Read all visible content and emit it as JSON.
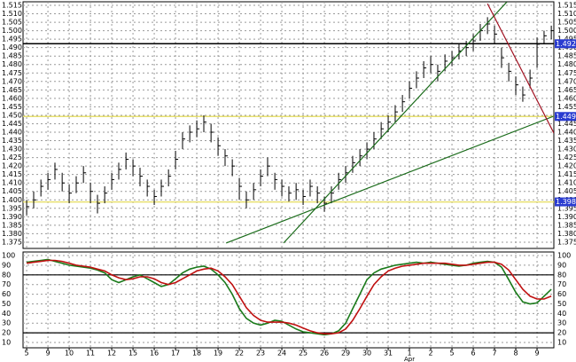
{
  "chart_data": [
    {
      "type": "ohlc",
      "x": [
        0,
        0.33,
        0.67,
        1,
        1.33,
        1.67,
        2,
        2.33,
        2.67,
        3,
        3.33,
        3.67,
        4,
        4.33,
        4.67,
        5,
        5.33,
        5.67,
        6,
        6.33,
        6.67,
        7,
        7.33,
        7.67,
        8,
        8.33,
        8.67,
        9,
        9.33,
        9.67,
        10,
        10.33,
        10.67,
        11,
        11.33,
        11.67,
        12,
        12.33,
        12.67,
        13,
        13.33,
        13.67,
        14,
        14.33,
        14.67,
        15,
        15.33,
        15.67,
        16,
        16.33,
        16.67,
        17,
        17.33,
        17.67,
        18,
        18.33,
        18.67,
        19,
        19.33,
        19.67,
        20,
        20.33,
        20.67,
        21,
        21.33,
        21.67,
        22,
        22.33,
        22.67,
        23,
        23.33,
        23.67,
        24,
        24.33,
        24.67
      ],
      "high": [
        1.4,
        1.405,
        1.412,
        1.416,
        1.422,
        1.416,
        1.409,
        1.414,
        1.42,
        1.41,
        1.403,
        1.408,
        1.416,
        1.422,
        1.428,
        1.424,
        1.419,
        1.412,
        1.406,
        1.412,
        1.418,
        1.429,
        1.44,
        1.444,
        1.447,
        1.45,
        1.445,
        1.437,
        1.43,
        1.424,
        1.413,
        1.405,
        1.41,
        1.418,
        1.425,
        1.416,
        1.412,
        1.408,
        1.41,
        1.406,
        1.412,
        1.408,
        1.402,
        1.408,
        1.416,
        1.42,
        1.426,
        1.43,
        1.434,
        1.44,
        1.446,
        1.45,
        1.456,
        1.462,
        1.47,
        1.476,
        1.482,
        1.485,
        1.48,
        1.486,
        1.488,
        1.492,
        1.494,
        1.498,
        1.504,
        1.508,
        1.503,
        1.49,
        1.481,
        1.473,
        1.467,
        1.477,
        1.496,
        1.5,
        1.503
      ],
      "low": [
        1.391,
        1.395,
        1.402,
        1.406,
        1.412,
        1.405,
        1.398,
        1.404,
        1.41,
        1.398,
        1.392,
        1.398,
        1.406,
        1.412,
        1.418,
        1.414,
        1.408,
        1.402,
        1.397,
        1.402,
        1.408,
        1.418,
        1.43,
        1.434,
        1.437,
        1.44,
        1.434,
        1.426,
        1.42,
        1.414,
        1.4,
        1.395,
        1.4,
        1.408,
        1.414,
        1.406,
        1.402,
        1.399,
        1.4,
        1.397,
        1.402,
        1.398,
        1.393,
        1.398,
        1.406,
        1.41,
        1.416,
        1.42,
        1.424,
        1.43,
        1.436,
        1.44,
        1.446,
        1.452,
        1.46,
        1.466,
        1.472,
        1.475,
        1.47,
        1.476,
        1.479,
        1.483,
        1.485,
        1.488,
        1.494,
        1.498,
        1.492,
        1.478,
        1.47,
        1.462,
        1.458,
        1.466,
        1.478,
        1.492,
        1.495
      ],
      "close": [
        1.396,
        1.4,
        1.408,
        1.412,
        1.418,
        1.41,
        1.404,
        1.41,
        1.416,
        1.405,
        1.398,
        1.404,
        1.412,
        1.418,
        1.424,
        1.42,
        1.414,
        1.408,
        1.402,
        1.408,
        1.414,
        1.424,
        1.436,
        1.44,
        1.442,
        1.446,
        1.44,
        1.432,
        1.426,
        1.42,
        1.408,
        1.4,
        1.406,
        1.414,
        1.42,
        1.412,
        1.408,
        1.404,
        1.406,
        1.402,
        1.408,
        1.404,
        1.398,
        1.404,
        1.412,
        1.416,
        1.422,
        1.426,
        1.43,
        1.436,
        1.442,
        1.446,
        1.452,
        1.458,
        1.466,
        1.472,
        1.478,
        1.48,
        1.476,
        1.482,
        1.484,
        1.488,
        1.49,
        1.494,
        1.5,
        1.504,
        1.498,
        1.484,
        1.476,
        1.468,
        1.462,
        1.472,
        1.492,
        1.497,
        1.5
      ],
      "color": "#000000",
      "xlim": [
        -0.17,
        24.79
      ],
      "ylim": [
        1.3713,
        1.5171
      ],
      "yticks": [
        1.515,
        {
          "value": 1.51,
          "label": "1.510"
        },
        1.505,
        {
          "value": 1.5,
          "label": "1.500"
        },
        1.495,
        {
          "value": 1.49,
          "label": "1.490"
        },
        1.485,
        {
          "value": 1.48,
          "label": "1.480"
        },
        1.475,
        {
          "value": 1.47,
          "label": "1.470"
        },
        1.465,
        {
          "value": 1.46,
          "label": "1.460"
        },
        1.455,
        {
          "value": 1.45,
          "label": "1.450"
        },
        1.445,
        {
          "value": 1.44,
          "label": "1.440"
        },
        1.435,
        {
          "value": 1.43,
          "label": "1.430"
        },
        1.425,
        {
          "value": 1.42,
          "label": "1.420"
        },
        1.415,
        {
          "value": 1.41,
          "label": "1.410"
        },
        1.405,
        {
          "value": 1.4,
          "label": "1.400"
        },
        1.395,
        {
          "value": 1.39,
          "label": "1.390"
        },
        1.385,
        {
          "value": 1.38,
          "label": "1.380"
        },
        1.375
      ],
      "grid": true,
      "hlines": [
        {
          "value": 1.4923,
          "color": "#000000"
        },
        {
          "value": 1.4493,
          "color": "#e8e070"
        },
        {
          "value": 1.3988,
          "color": "#e8e070"
        }
      ],
      "trendlines": [
        {
          "color": "#1a6b1a",
          "x": [
            9.38,
            24.79
          ],
          "y": [
            1.3745,
            1.4495
          ]
        },
        {
          "color": "#1a6b1a",
          "x": [
            12.08,
            22.58
          ],
          "y": [
            1.3745,
            1.517
          ]
        },
        {
          "color": "#a01020",
          "x": [
            21.67,
            24.79
          ],
          "y": [
            1.516,
            1.4395
          ]
        }
      ]
    },
    {
      "type": "line",
      "x": [
        0,
        0.33,
        0.67,
        1,
        1.33,
        1.67,
        2,
        2.33,
        2.67,
        3,
        3.33,
        3.67,
        4,
        4.33,
        4.67,
        5,
        5.33,
        5.67,
        6,
        6.33,
        6.67,
        7,
        7.33,
        7.67,
        8,
        8.33,
        8.67,
        9,
        9.33,
        9.67,
        10,
        10.33,
        10.67,
        11,
        11.33,
        11.67,
        12,
        12.33,
        12.67,
        13,
        13.33,
        13.67,
        14,
        14.33,
        14.67,
        15,
        15.33,
        15.67,
        16,
        16.33,
        16.67,
        17,
        17.33,
        17.67,
        18,
        18.33,
        18.67,
        19,
        19.33,
        19.67,
        20,
        20.33,
        20.67,
        21,
        21.33,
        21.67,
        22,
        22.33,
        22.67,
        23,
        23.33,
        23.67,
        24,
        24.33,
        24.67
      ],
      "series": [
        {
          "color": "#1a7a1a",
          "values": [
            93,
            94,
            95,
            96,
            94,
            92,
            90,
            89,
            88,
            87,
            85,
            82,
            75,
            72,
            75,
            78,
            80,
            76,
            72,
            68,
            70,
            76,
            82,
            86,
            88,
            89,
            86,
            80,
            72,
            60,
            45,
            35,
            30,
            28,
            30,
            33,
            32,
            28,
            24,
            21,
            20,
            19,
            18,
            19,
            22,
            30,
            45,
            60,
            75,
            82,
            86,
            88,
            90,
            91,
            92,
            93,
            92,
            93,
            92,
            91,
            90,
            89,
            90,
            92,
            93,
            94,
            93,
            88,
            75,
            62,
            52,
            50,
            51,
            58,
            65
          ]
        },
        {
          "color": "#c01010",
          "values": [
            92,
            93,
            94,
            95,
            95,
            94,
            92,
            90,
            89,
            88,
            86,
            84,
            80,
            77,
            75,
            76,
            78,
            78,
            76,
            72,
            70,
            72,
            76,
            80,
            84,
            86,
            87,
            84,
            78,
            70,
            58,
            46,
            38,
            33,
            31,
            31,
            31,
            30,
            28,
            25,
            22,
            20,
            19,
            19,
            20,
            24,
            33,
            45,
            58,
            70,
            78,
            84,
            87,
            89,
            90,
            91,
            92,
            92,
            92,
            92,
            91,
            90,
            90,
            91,
            92,
            93,
            93,
            91,
            85,
            75,
            65,
            58,
            55,
            55,
            58
          ]
        }
      ],
      "xlim": [
        -0.17,
        24.79
      ],
      "ylim": [
        4.5,
        103.7
      ],
      "yticks": [
        10,
        20,
        30,
        40,
        50,
        60,
        70,
        80,
        90,
        100
      ],
      "grid": true,
      "hlines": [
        {
          "value": 80,
          "color": "#000000"
        },
        {
          "value": 20,
          "color": "#000000"
        }
      ],
      "xticks": [
        {
          "value": 0,
          "label": "5"
        },
        {
          "value": 1,
          "label": "9"
        },
        {
          "value": 2,
          "label": "10"
        },
        {
          "value": 3,
          "label": "11"
        },
        {
          "value": 4,
          "label": "12"
        },
        {
          "value": 5,
          "label": "15"
        },
        {
          "value": 6,
          "label": "16"
        },
        {
          "value": 7,
          "label": "17"
        },
        {
          "value": 8,
          "label": "18"
        },
        {
          "value": 9,
          "label": "19"
        },
        {
          "value": 10,
          "label": "22"
        },
        {
          "value": 11,
          "label": "23"
        },
        {
          "value": 12,
          "label": "24"
        },
        {
          "value": 13,
          "label": "25"
        },
        {
          "value": 14,
          "label": "26"
        },
        {
          "value": 15,
          "label": "29"
        },
        {
          "value": 16,
          "label": "30"
        },
        {
          "value": 17,
          "label": "31"
        },
        {
          "value": 18,
          "label": "1"
        },
        {
          "value": 19,
          "label": "2"
        },
        {
          "value": 20,
          "label": "5"
        },
        {
          "value": 21,
          "label": "6"
        },
        {
          "value": 22,
          "label": "7"
        },
        {
          "value": 23,
          "label": "8"
        },
        {
          "value": 24,
          "label": "9"
        }
      ],
      "annotations": [
        {
          "text": "Apr",
          "x": 18
        }
      ]
    }
  ]
}
